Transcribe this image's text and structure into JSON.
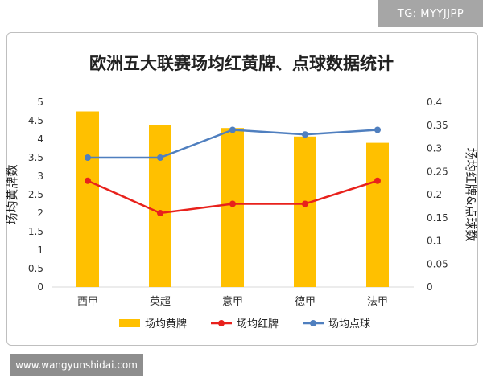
{
  "watermarks": {
    "top": "TG: MYYJJPP",
    "bottom": "www.wangyunshidai.com"
  },
  "chart_data": {
    "type": "bar",
    "title": "欧洲五大联赛场均红黄牌、点球数据统计",
    "categories": [
      "西甲",
      "英超",
      "意甲",
      "德甲",
      "法甲"
    ],
    "ylabel": "场均黄牌数",
    "y2label": "场均红牌&点球数",
    "ylim": [
      0,
      5
    ],
    "yticks": [
      "0",
      "0.5",
      "1",
      "1.5",
      "2",
      "2.5",
      "3",
      "3.5",
      "4",
      "4.5",
      "5"
    ],
    "y2lim": [
      0,
      0.4
    ],
    "y2ticks": [
      "0",
      "0.05",
      "0.1",
      "0.15",
      "0.2",
      "0.25",
      "0.3",
      "0.35",
      "0.4"
    ],
    "grid": false,
    "legend_position": "bottom",
    "series": [
      {
        "name": "场均黄牌",
        "type": "bar",
        "axis": "left",
        "color": "#ffc000",
        "values": [
          4.75,
          4.37,
          4.3,
          4.07,
          3.9
        ]
      },
      {
        "name": "场均红牌",
        "type": "line",
        "axis": "right",
        "color": "#e8211c",
        "values": [
          0.23,
          0.16,
          0.18,
          0.18,
          0.23
        ]
      },
      {
        "name": "场均点球",
        "type": "line",
        "axis": "right",
        "color": "#4f7fbf",
        "values": [
          0.28,
          0.28,
          0.34,
          0.33,
          0.34
        ]
      }
    ]
  }
}
